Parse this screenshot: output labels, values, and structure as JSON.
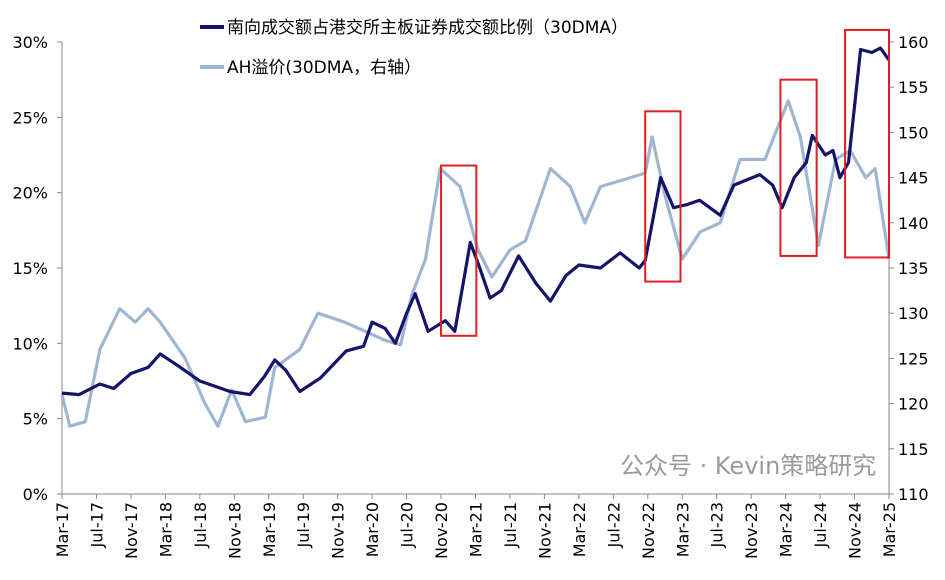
{
  "chart_data": {
    "type": "line",
    "title": "",
    "x_tick_labels": [
      "Mar-17",
      "Jul-17",
      "Nov-17",
      "Mar-18",
      "Jul-18",
      "Nov-18",
      "Mar-19",
      "Jul-19",
      "Nov-19",
      "Mar-20",
      "Jul-20",
      "Nov-20",
      "Mar-21",
      "Jul-21",
      "Nov-21",
      "Mar-22",
      "Jul-22",
      "Nov-22",
      "Mar-23",
      "Jul-23",
      "Nov-23",
      "Mar-24",
      "Jul-24",
      "Nov-24",
      "Mar-25"
    ],
    "x_unit": "months since Mar-17",
    "xlim": [
      0,
      96
    ],
    "left_axis": {
      "ylim": [
        0,
        30
      ],
      "ticks": [
        "0%",
        "5%",
        "10%",
        "15%",
        "20%",
        "25%",
        "30%"
      ]
    },
    "right_axis": {
      "ylim": [
        110,
        160
      ],
      "ticks": [
        "110",
        "115",
        "120",
        "125",
        "130",
        "135",
        "140",
        "145",
        "150",
        "155",
        "160"
      ]
    },
    "grid": false,
    "legend_position": "top-center",
    "series": [
      {
        "name": "南向成交额占港交所主板证券成交额比例（30DMA）",
        "axis": "left",
        "color": "#14146b",
        "points": [
          [
            0,
            6.7
          ],
          [
            2,
            6.6
          ],
          [
            4.4,
            7.3
          ],
          [
            6,
            7.0
          ],
          [
            8,
            8.0
          ],
          [
            10,
            8.4
          ],
          [
            11.4,
            9.3
          ],
          [
            13.5,
            8.5
          ],
          [
            16,
            7.5
          ],
          [
            17.5,
            7.2
          ],
          [
            19.5,
            6.8
          ],
          [
            21.8,
            6.6
          ],
          [
            23.5,
            7.8
          ],
          [
            24.7,
            8.9
          ],
          [
            26,
            8.2
          ],
          [
            27.6,
            6.8
          ],
          [
            30,
            7.7
          ],
          [
            33,
            9.5
          ],
          [
            35,
            9.8
          ],
          [
            36,
            11.4
          ],
          [
            37.5,
            11.0
          ],
          [
            38.7,
            10.0
          ],
          [
            40,
            12
          ],
          [
            41,
            13.3
          ],
          [
            42.5,
            10.8
          ],
          [
            44.5,
            11.5
          ],
          [
            45.6,
            10.8
          ],
          [
            47.4,
            16.7
          ],
          [
            48.5,
            15
          ],
          [
            49.7,
            13
          ],
          [
            51,
            13.5
          ],
          [
            53,
            15.8
          ],
          [
            55,
            14
          ],
          [
            56.7,
            12.8
          ],
          [
            58.5,
            14.5
          ],
          [
            60,
            15.2
          ],
          [
            62.5,
            15
          ],
          [
            64.8,
            16
          ],
          [
            67,
            15
          ],
          [
            67.7,
            15.5
          ],
          [
            69.5,
            21
          ],
          [
            71,
            19
          ],
          [
            72.5,
            19.2
          ],
          [
            74,
            19.5
          ],
          [
            76.4,
            18.5
          ],
          [
            78,
            20.5
          ],
          [
            81,
            21.2
          ],
          [
            82.5,
            20.5
          ],
          [
            83.6,
            19
          ],
          [
            85,
            21
          ],
          [
            86.4,
            22
          ],
          [
            87.1,
            23.8
          ],
          [
            88.6,
            22.5
          ],
          [
            89.5,
            22.8
          ],
          [
            90.3,
            21
          ],
          [
            91.3,
            22
          ],
          [
            92.7,
            29.5
          ],
          [
            94,
            29.3
          ],
          [
            95,
            29.6
          ],
          [
            96,
            28.8
          ]
        ]
      },
      {
        "name": "AH溢价(30DMA，右轴）",
        "axis": "right",
        "color": "#9fb6d2",
        "points": [
          [
            0,
            121
          ],
          [
            0.9,
            117.5
          ],
          [
            2.7,
            118
          ],
          [
            4.4,
            126
          ],
          [
            6.7,
            130.5
          ],
          [
            8.5,
            129
          ],
          [
            10,
            130.5
          ],
          [
            11.4,
            129
          ],
          [
            14.3,
            125
          ],
          [
            16.6,
            120
          ],
          [
            18.1,
            117.5
          ],
          [
            19.7,
            121.5
          ],
          [
            21.3,
            118
          ],
          [
            23.6,
            118.5
          ],
          [
            24.7,
            124
          ],
          [
            27.6,
            126
          ],
          [
            29.7,
            130
          ],
          [
            32.8,
            129
          ],
          [
            35.2,
            128
          ],
          [
            37.5,
            127
          ],
          [
            39.3,
            126.5
          ],
          [
            40.6,
            132
          ],
          [
            42.2,
            136
          ],
          [
            43.9,
            146
          ],
          [
            46.2,
            144
          ],
          [
            48.3,
            137
          ],
          [
            49.9,
            134
          ],
          [
            52,
            137
          ],
          [
            53.8,
            138
          ],
          [
            56.7,
            146
          ],
          [
            59,
            144
          ],
          [
            60.7,
            140
          ],
          [
            62.5,
            144
          ],
          [
            66,
            145
          ],
          [
            67.7,
            145.5
          ],
          [
            68.5,
            149.5
          ],
          [
            70,
            143
          ],
          [
            72,
            136
          ],
          [
            74.1,
            139
          ],
          [
            76.4,
            140
          ],
          [
            78.7,
            147
          ],
          [
            81.6,
            147
          ],
          [
            84.3,
            153.5
          ],
          [
            85.7,
            149.5
          ],
          [
            87.8,
            137.5
          ],
          [
            89.8,
            147
          ],
          [
            91.5,
            148
          ],
          [
            93.3,
            145
          ],
          [
            94.4,
            146
          ],
          [
            96,
            136
          ]
        ]
      }
    ],
    "annotations": [
      {
        "type": "box",
        "color": "#e02020",
        "x_range": [
          44,
          48.1
        ],
        "left_y_range": [
          10.5,
          21.8
        ]
      },
      {
        "type": "box",
        "color": "#e02020",
        "x_range": [
          67.7,
          71.8
        ],
        "left_y_range": [
          14.1,
          25.4
        ]
      },
      {
        "type": "box",
        "color": "#e02020",
        "x_range": [
          83.4,
          87.6
        ],
        "left_y_range": [
          15.8,
          27.5
        ]
      },
      {
        "type": "box",
        "color": "#e02020",
        "x_range": [
          90.9,
          96
        ],
        "left_y_range": [
          15.7,
          30.8
        ]
      }
    ],
    "watermark": "公众号 · Kevin策略研究"
  }
}
